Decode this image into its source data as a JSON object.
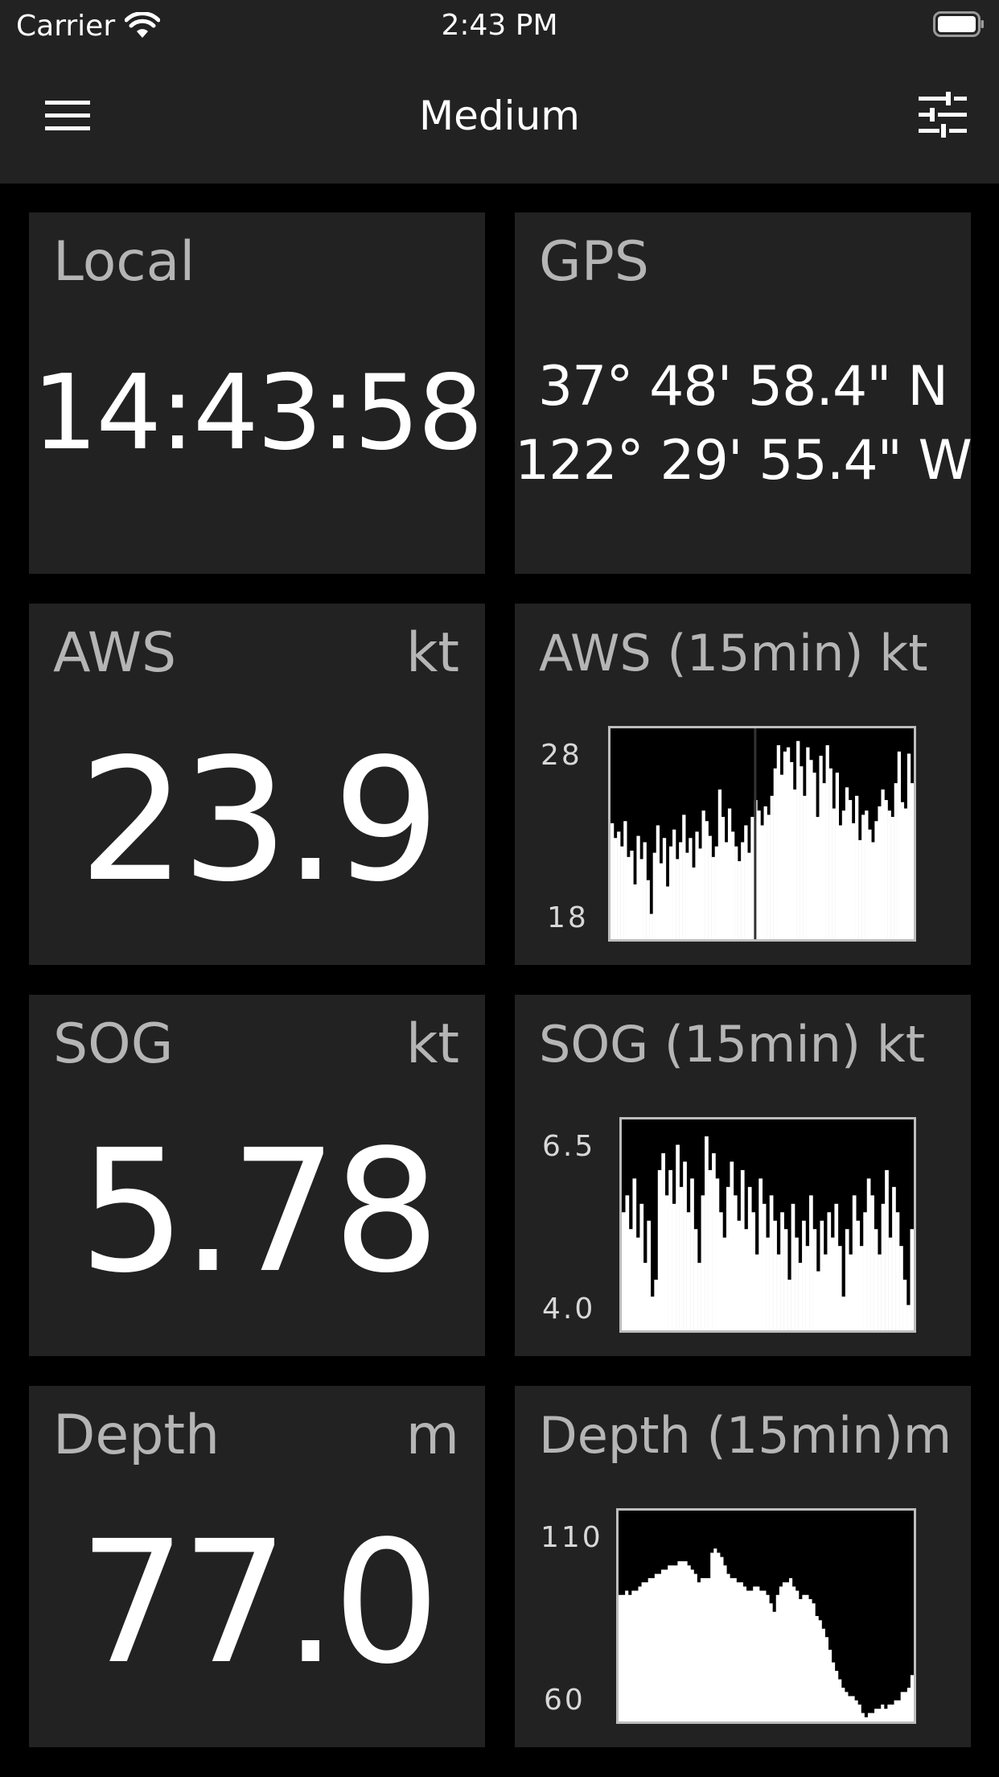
{
  "status": {
    "carrier": "Carrier",
    "time": "2:43 PM"
  },
  "nav": {
    "title": "Medium",
    "menu_icon": "menu-icon",
    "settings_icon": "tune-icon"
  },
  "tiles": {
    "local": {
      "label": "Local",
      "value": "14:43:58"
    },
    "gps": {
      "label": "GPS",
      "lat": "37° 48' 58.4\" N",
      "lon": "122° 29' 55.4\" W"
    },
    "aws": {
      "label": "AWS",
      "unit": "kt",
      "value": "23.9"
    },
    "aws_graph": {
      "label": "AWS (15min) kt",
      "ymax": "28",
      "ymin": "18"
    },
    "sog": {
      "label": "SOG",
      "unit": "kt",
      "value": "5.78"
    },
    "sog_graph": {
      "label": "SOG (15min) kt",
      "ymax": "6.5",
      "ymin": "4.0"
    },
    "depth": {
      "label": "Depth",
      "unit": "m",
      "value": "77.0"
    },
    "depth_graph": {
      "label": "Depth (15min)m",
      "ymax": "110",
      "ymin": "60"
    }
  },
  "chart_data": [
    {
      "type": "bar",
      "title": "AWS (15min) kt",
      "ylim": [
        18,
        28
      ],
      "values": [
        23.5,
        22.8,
        23.1,
        22.4,
        23.6,
        21.9,
        22.2,
        20.6,
        22.9,
        21.8,
        22.6,
        20.8,
        19.2,
        22.1,
        23.4,
        21.6,
        22.8,
        20.5,
        22.4,
        23.2,
        21.8,
        22.6,
        23.9,
        22.1,
        22.8,
        21.4,
        23.1,
        22.3,
        24.1,
        23.6,
        22.9,
        21.9,
        22.4,
        25.1,
        23.8,
        22.6,
        24.2,
        23.1,
        22.4,
        21.7,
        22.6,
        23.4,
        22.1,
        23.8,
        24.6,
        24.1,
        23.4,
        24.3,
        23.9,
        24.8,
        26.1,
        27.2,
        25.8,
        26.9,
        27.1,
        26.4,
        25.1,
        27.4,
        26.2,
        24.8,
        27.1,
        26.5,
        25.9,
        23.8,
        26.7,
        25.4,
        27.2,
        26.1,
        24.2,
        25.9,
        23.4,
        24.1,
        25.2,
        24.6,
        23.5,
        24.8,
        22.7,
        23.9,
        24.1,
        23.2,
        22.6,
        23.6,
        24.3,
        25.1,
        24.6,
        24.1,
        23.8,
        25.4,
        26.9,
        24.5,
        24.2,
        26.8,
        25.4
      ],
      "cursor_index": 44
    },
    {
      "type": "bar",
      "title": "SOG (15min) kt",
      "ylim": [
        4.0,
        6.5
      ],
      "values": [
        5.4,
        5.6,
        5.2,
        5.8,
        5.1,
        5.5,
        4.8,
        5.3,
        4.4,
        4.6,
        5.9,
        6.1,
        5.6,
        5.9,
        5.5,
        6.2,
        5.7,
        6.0,
        5.4,
        5.8,
        5.2,
        4.8,
        5.6,
        6.3,
        5.9,
        6.1,
        5.8,
        5.4,
        5.1,
        5.7,
        6.0,
        5.6,
        5.3,
        5.9,
        5.2,
        5.7,
        5.4,
        4.9,
        5.8,
        5.5,
        5.1,
        5.6,
        5.3,
        4.9,
        5.4,
        5.2,
        4.6,
        5.5,
        5.1,
        4.8,
        5.3,
        5.0,
        5.6,
        5.2,
        4.7,
        5.3,
        4.9,
        5.4,
        5.1,
        5.5,
        5.0,
        4.4,
        5.2,
        4.9,
        5.6,
        5.3,
        5.0,
        5.4,
        5.8,
        5.6,
        5.2,
        4.9,
        5.5,
        5.9,
        5.1,
        5.7,
        5.4,
        5.0,
        4.6,
        4.3,
        5.2
      ],
      "cursor_index": null
    },
    {
      "type": "area",
      "title": "Depth (15min)m",
      "ylim": [
        60,
        110
      ],
      "values": [
        90,
        90,
        91,
        90,
        91,
        91,
        92,
        93,
        93,
        94,
        94,
        95,
        95,
        96,
        96,
        97,
        97,
        97,
        98,
        98,
        98,
        97,
        96,
        95,
        93,
        94,
        94,
        94,
        100,
        101,
        100,
        99,
        97,
        95,
        94,
        94,
        93,
        93,
        92,
        91,
        91,
        92,
        92,
        91,
        91,
        90,
        88,
        86,
        90,
        92,
        93,
        93,
        94,
        92,
        91,
        89,
        90,
        90,
        89,
        88,
        85,
        84,
        82,
        80,
        77,
        74,
        72,
        70,
        68,
        67,
        66,
        66,
        65,
        64,
        62,
        61,
        62,
        62,
        63,
        63,
        64,
        63,
        64,
        64,
        65,
        65,
        67,
        67,
        68,
        71
      ]
    }
  ]
}
